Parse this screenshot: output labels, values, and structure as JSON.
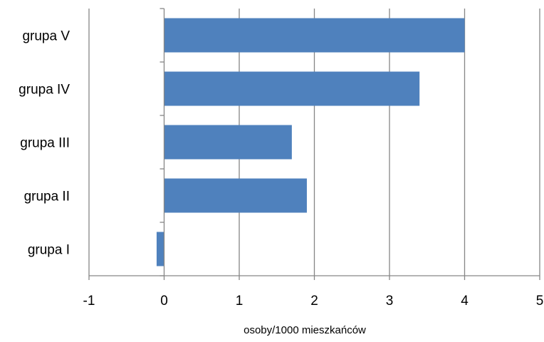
{
  "chart_data": {
    "type": "bar",
    "orientation": "horizontal",
    "categories": [
      "grupa V",
      "grupa IV",
      "grupa III",
      "grupa II",
      "grupa I"
    ],
    "series": [
      {
        "values": [
          4.0,
          3.4,
          1.7,
          1.9,
          -0.1
        ]
      }
    ],
    "xlabel": "osoby/1000 mieszkańców",
    "ylabel": "",
    "xlim": [
      -1,
      5
    ],
    "xticks": [
      "-1",
      "0",
      "1",
      "2",
      "3",
      "4",
      "5"
    ],
    "grid": true,
    "legend": "none",
    "colors": {
      "bar": "#4f81bd",
      "grid": "#868686",
      "axis": "#868686"
    }
  }
}
